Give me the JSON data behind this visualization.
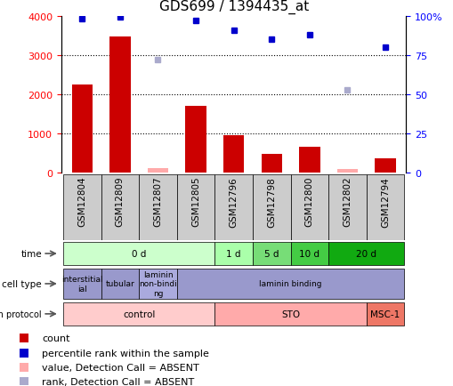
{
  "title": "GDS699 / 1394435_at",
  "samples": [
    "GSM12804",
    "GSM12809",
    "GSM12807",
    "GSM12805",
    "GSM12796",
    "GSM12798",
    "GSM12800",
    "GSM12802",
    "GSM12794"
  ],
  "bar_values": [
    2250,
    3480,
    120,
    1700,
    950,
    480,
    650,
    90,
    350
  ],
  "bar_absent": [
    false,
    false,
    true,
    false,
    false,
    false,
    false,
    true,
    false
  ],
  "dot_values": [
    98,
    99,
    72,
    97,
    91,
    85,
    88,
    53,
    80
  ],
  "dot_absent": [
    false,
    false,
    true,
    false,
    false,
    false,
    false,
    true,
    false
  ],
  "bar_color_present": "#cc0000",
  "bar_color_absent": "#ffaaaa",
  "dot_color_present": "#0000cc",
  "dot_color_absent": "#aaaacc",
  "time_segs": [
    {
      "label": "0 d",
      "start": 0,
      "end": 3,
      "color": "#ccffcc"
    },
    {
      "label": "1 d",
      "start": 4,
      "end": 4,
      "color": "#aaffaa"
    },
    {
      "label": "5 d",
      "start": 5,
      "end": 5,
      "color": "#77dd77"
    },
    {
      "label": "10 d",
      "start": 6,
      "end": 6,
      "color": "#44cc44"
    },
    {
      "label": "20 d",
      "start": 7,
      "end": 8,
      "color": "#11aa11"
    }
  ],
  "cell_segs": [
    {
      "label": "interstitial\nial",
      "start": 0,
      "end": 0,
      "color": "#9999cc"
    },
    {
      "label": "tubular",
      "start": 1,
      "end": 1,
      "color": "#9999cc"
    },
    {
      "label": "laminin\nnon-bindi\nng",
      "start": 2,
      "end": 2,
      "color": "#aaaadd"
    },
    {
      "label": "laminin binding",
      "start": 3,
      "end": 8,
      "color": "#9999cc"
    }
  ],
  "growth_segs": [
    {
      "label": "control",
      "start": 0,
      "end": 3,
      "color": "#ffcccc"
    },
    {
      "label": "STO",
      "start": 4,
      "end": 7,
      "color": "#ffaaaa"
    },
    {
      "label": "MSC-1",
      "start": 8,
      "end": 8,
      "color": "#ee7766"
    }
  ],
  "legend_items": [
    {
      "label": "count",
      "color": "#cc0000"
    },
    {
      "label": "percentile rank within the sample",
      "color": "#0000cc"
    },
    {
      "label": "value, Detection Call = ABSENT",
      "color": "#ffaaaa"
    },
    {
      "label": "rank, Detection Call = ABSENT",
      "color": "#aaaacc"
    }
  ]
}
